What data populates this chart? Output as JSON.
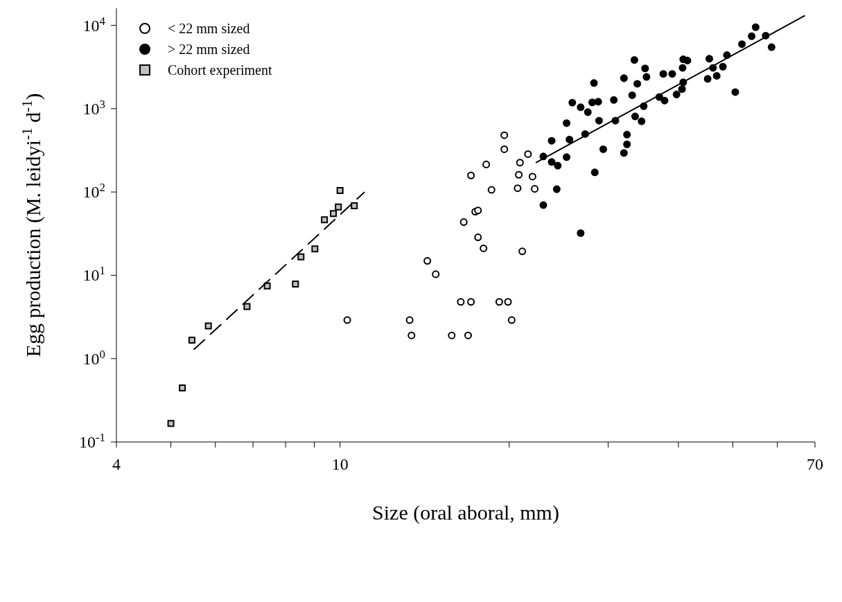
{
  "chart_data": {
    "type": "scatter",
    "xlabel": "Size (oral aboral, mm)",
    "ylabel": "Egg production (M. leidyi$^{-1}$ d$^{-1}$)",
    "log": "xy",
    "xlim": [
      4,
      70
    ],
    "ylim": [
      0.1,
      16000
    ],
    "xticks": [
      4,
      {
        "value": 5,
        "label": null
      },
      {
        "value": 6,
        "label": null
      },
      {
        "value": 7,
        "label": null
      },
      {
        "value": 8,
        "label": null
      },
      {
        "value": 9,
        "label": null
      },
      10,
      {
        "value": 20,
        "label": null
      },
      {
        "value": 30,
        "label": null
      },
      {
        "value": 40,
        "label": null
      },
      {
        "value": 50,
        "label": null
      },
      {
        "value": 60,
        "label": null
      },
      70
    ],
    "yticks": [
      {
        "value": 0.1,
        "label": "10$^{-1}$"
      },
      {
        "value": 1,
        "label": "10$^{0}$"
      },
      {
        "value": 10,
        "label": "10$^{1}$"
      },
      {
        "value": 100,
        "label": "10$^{2}$"
      },
      {
        "value": 1000,
        "label": "10$^{3}$"
      },
      {
        "value": 10000,
        "label": "10$^{4}$"
      }
    ],
    "legend": "top left",
    "series": [
      {
        "name": "< 22 mm sized",
        "type": "scatter",
        "marker": "circle",
        "color": "#ffffff",
        "x": [
          19.6,
          19.6,
          21.6,
          18.2,
          20.9,
          17.1,
          20.8,
          22.0,
          18.6,
          20.7,
          22.2,
          17.4,
          17.6,
          16.6,
          17.6,
          18.0,
          21.1,
          14.3,
          14.8,
          16.4,
          17.1,
          19.2,
          19.9,
          10.3,
          13.3,
          20.2,
          13.4,
          15.8,
          16.9
        ],
        "values": [
          480,
          326,
          285,
          214,
          225,
          158,
          161,
          153,
          106,
          111,
          109,
          58,
          60,
          43.5,
          28.6,
          21.1,
          19.4,
          14.9,
          10.3,
          4.8,
          4.8,
          4.8,
          4.8,
          2.9,
          2.9,
          2.9,
          1.9,
          1.9,
          1.9
        ]
      },
      {
        "name": "> 22 mm sized",
        "type": "scatter",
        "marker": "circle",
        "color": "#000000",
        "x": [
          54.9,
          54.0,
          57.2,
          58.6,
          51.9,
          48.8,
          45.4,
          48.0,
          46.1,
          46.8,
          45.1,
          50.5,
          40.8,
          41.5,
          40.7,
          40.8,
          40.6,
          39.7,
          39.0,
          37.6,
          37.8,
          37.0,
          33.4,
          34.9,
          35.1,
          33.8,
          32.0,
          33.1,
          34.7,
          30.7,
          28.3,
          28.8,
          28.1,
          25.9,
          26.8,
          27.6,
          28.9,
          30.9,
          33.5,
          34.4,
          25.3,
          27.3,
          25.6,
          23.8,
          32.4,
          32.4,
          32.0,
          29.4,
          23.0,
          23.8,
          24.4,
          25.3,
          28.4,
          24.3,
          23.0,
          26.8
        ],
        "values": [
          9500,
          7390,
          7520,
          5470,
          5950,
          4390,
          3970,
          3190,
          3090,
          2480,
          2280,
          1580,
          3910,
          3780,
          3090,
          2070,
          1720,
          1480,
          2610,
          2610,
          1250,
          1380,
          3840,
          3040,
          2400,
          1990,
          2320,
          1450,
          1070,
          1270,
          2030,
          1210,
          1190,
          1180,
          1040,
          908,
          718,
          718,
          807,
          705,
          671,
          496,
          426,
          412,
          488,
          373,
          294,
          326,
          267,
          229,
          207,
          262,
          172,
          108,
          69.6,
          32.1
        ]
      },
      {
        "name": "Cohort experiment",
        "type": "scatter",
        "marker": "square",
        "color": "#c0c0c0",
        "x": [
          5.0,
          5.24,
          5.45,
          5.83,
          6.83,
          7.42,
          8.33,
          8.52,
          9.02,
          9.38,
          9.73,
          9.93,
          10.0,
          10.6
        ],
        "values": [
          0.167,
          0.446,
          1.67,
          2.47,
          4.22,
          7.47,
          7.85,
          16.7,
          20.8,
          46.5,
          55.1,
          66.2,
          104,
          68.4
        ]
      },
      {
        "type": "line",
        "marker": "none",
        "line_style": "dashed",
        "color": "#000000",
        "x": [
          5.49,
          11.06
        ],
        "values": [
          1.28,
          100
        ]
      },
      {
        "type": "line",
        "marker": "none",
        "line_style": "solid",
        "color": "#000000",
        "x": [
          22.3,
          67.2
        ],
        "values": [
          225,
          13100
        ]
      }
    ]
  }
}
